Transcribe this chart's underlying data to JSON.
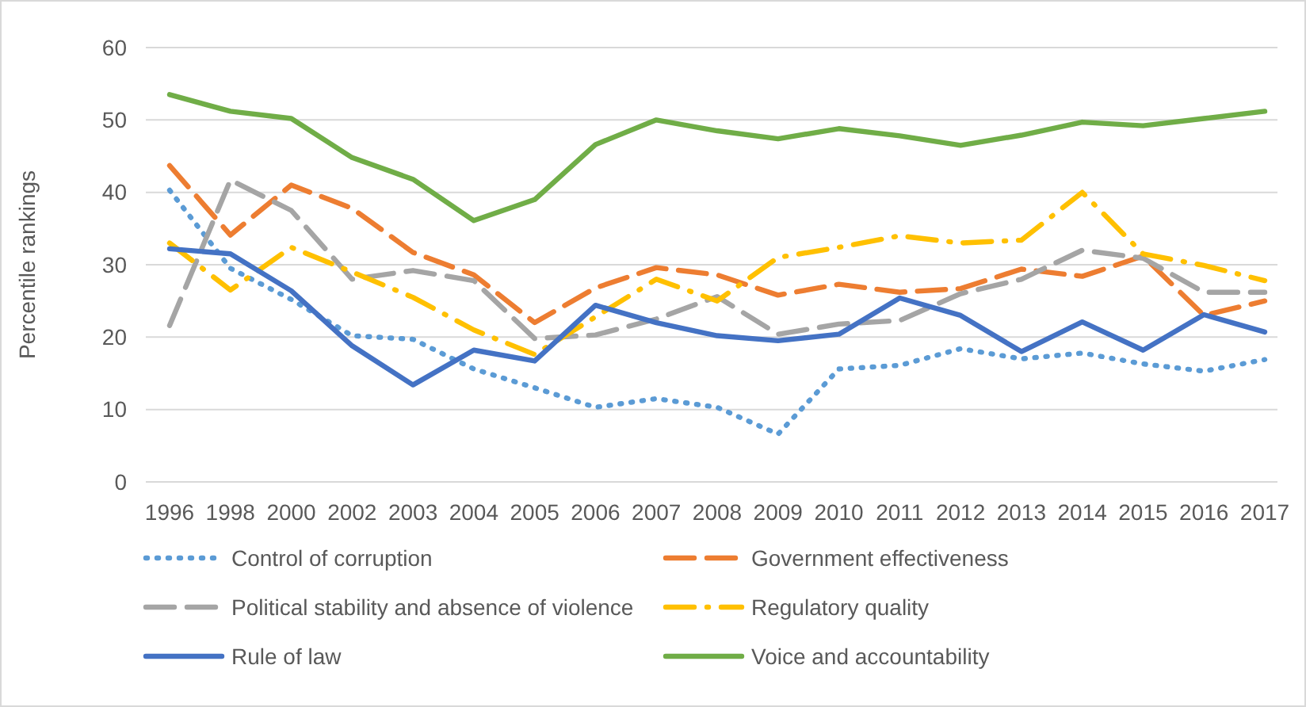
{
  "chart_data": {
    "type": "line",
    "ylabel": "Percentile rankings",
    "categories": [
      "1996",
      "1998",
      "2000",
      "2002",
      "2003",
      "2004",
      "2005",
      "2006",
      "2007",
      "2008",
      "2009",
      "2010",
      "2011",
      "2012",
      "2013",
      "2014",
      "2015",
      "2016",
      "2017"
    ],
    "series": [
      {
        "name": "Control of corruption",
        "color": "#5b9bd5",
        "line_style": "dotted",
        "values": [
          40.3,
          29.5,
          25.2,
          20.2,
          19.7,
          15.6,
          13.0,
          10.3,
          11.5,
          10.3,
          6.6,
          15.6,
          16.1,
          18.4,
          17.0,
          17.8,
          16.3,
          15.3,
          16.9
        ]
      },
      {
        "name": "Government effectiveness",
        "color": "#ed7d31",
        "line_style": "dashed",
        "values": [
          43.7,
          34.1,
          41.0,
          37.8,
          31.7,
          28.6,
          22.0,
          26.8,
          29.6,
          28.6,
          25.8,
          27.3,
          26.2,
          26.7,
          29.4,
          28.4,
          31.2,
          23.0,
          25.0
        ]
      },
      {
        "name": "Political stability and absence of violence",
        "color": "#a5a5a5",
        "line_style": "dashed",
        "values": [
          21.6,
          41.7,
          37.5,
          28.0,
          29.2,
          27.8,
          19.8,
          20.3,
          22.5,
          25.6,
          20.4,
          21.8,
          22.3,
          26.0,
          28.0,
          32.0,
          30.9,
          26.2,
          26.2
        ]
      },
      {
        "name": "Regulatory quality",
        "color": "#ffc000",
        "line_style": "dashdot",
        "values": [
          33.0,
          26.5,
          32.4,
          29.0,
          25.5,
          21.0,
          17.6,
          22.8,
          28.0,
          25.0,
          31.0,
          32.4,
          34.0,
          33.0,
          33.4,
          40.0,
          31.5,
          29.9,
          27.8
        ]
      },
      {
        "name": "Rule of law",
        "color": "#4472c4",
        "line_style": "solid",
        "values": [
          32.2,
          31.5,
          26.4,
          18.8,
          13.4,
          18.2,
          16.7,
          24.4,
          22.0,
          20.2,
          19.5,
          20.4,
          25.4,
          23.0,
          18.0,
          22.1,
          18.2,
          23.1,
          20.7
        ]
      },
      {
        "name": "Voice and accountability",
        "color": "#70ad47",
        "line_style": "solid",
        "values": [
          53.5,
          51.2,
          50.2,
          44.8,
          41.8,
          36.1,
          39.0,
          46.6,
          50.0,
          48.5,
          47.4,
          48.8,
          47.8,
          46.5,
          47.9,
          49.7,
          49.2,
          50.2,
          51.2
        ]
      }
    ],
    "ylim": [
      0,
      60
    ],
    "yticks": [
      0,
      10,
      20,
      30,
      40,
      50,
      60
    ],
    "grid": "y",
    "legend": "bottom"
  }
}
